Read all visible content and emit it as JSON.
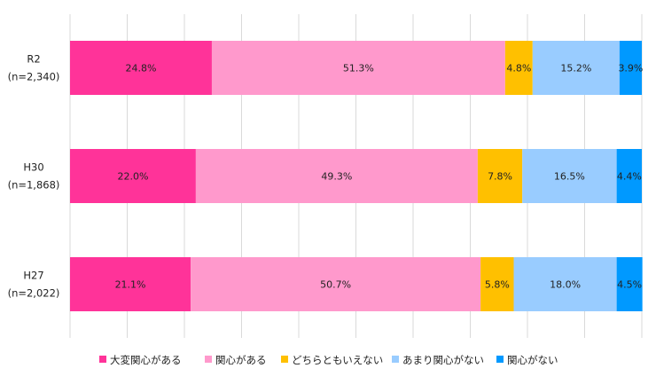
{
  "chart_data": {
    "type": "bar",
    "orientation": "horizontal",
    "stacked": true,
    "categories": [
      {
        "line1": "R2",
        "line2": "(n=2,340)"
      },
      {
        "line1": "H30",
        "line2": "(n=1,868)"
      },
      {
        "line1": "H27",
        "line2": "(n=2,022)"
      }
    ],
    "series": [
      {
        "name": "大変関心がある",
        "color": "#ff3399",
        "values": [
          24.8,
          22.0,
          21.1
        ],
        "labels": [
          "24.8%",
          "22.0%",
          "21.1%"
        ]
      },
      {
        "name": "関心がある",
        "color": "#ff99cc",
        "values": [
          51.3,
          49.3,
          50.7
        ],
        "labels": [
          "51.3%",
          "49.3%",
          "50.7%"
        ]
      },
      {
        "name": "どちらともいえない",
        "color": "#ffc000",
        "values": [
          4.8,
          7.8,
          5.8
        ],
        "labels": [
          "4.8%",
          "7.8%",
          "5.8%"
        ]
      },
      {
        "name": "あまり関心がない",
        "color": "#99ccff",
        "values": [
          15.2,
          16.5,
          18.0
        ],
        "labels": [
          "15.2%",
          "16.5%",
          "18.0%"
        ]
      },
      {
        "name": "関心がない",
        "color": "#0099ff",
        "values": [
          3.9,
          4.4,
          4.5
        ],
        "labels": [
          "3.9%",
          "4.4%",
          "4.5%"
        ]
      }
    ],
    "xlim": [
      0,
      100
    ],
    "gridlines": "vertical",
    "legend_position": "bottom"
  }
}
